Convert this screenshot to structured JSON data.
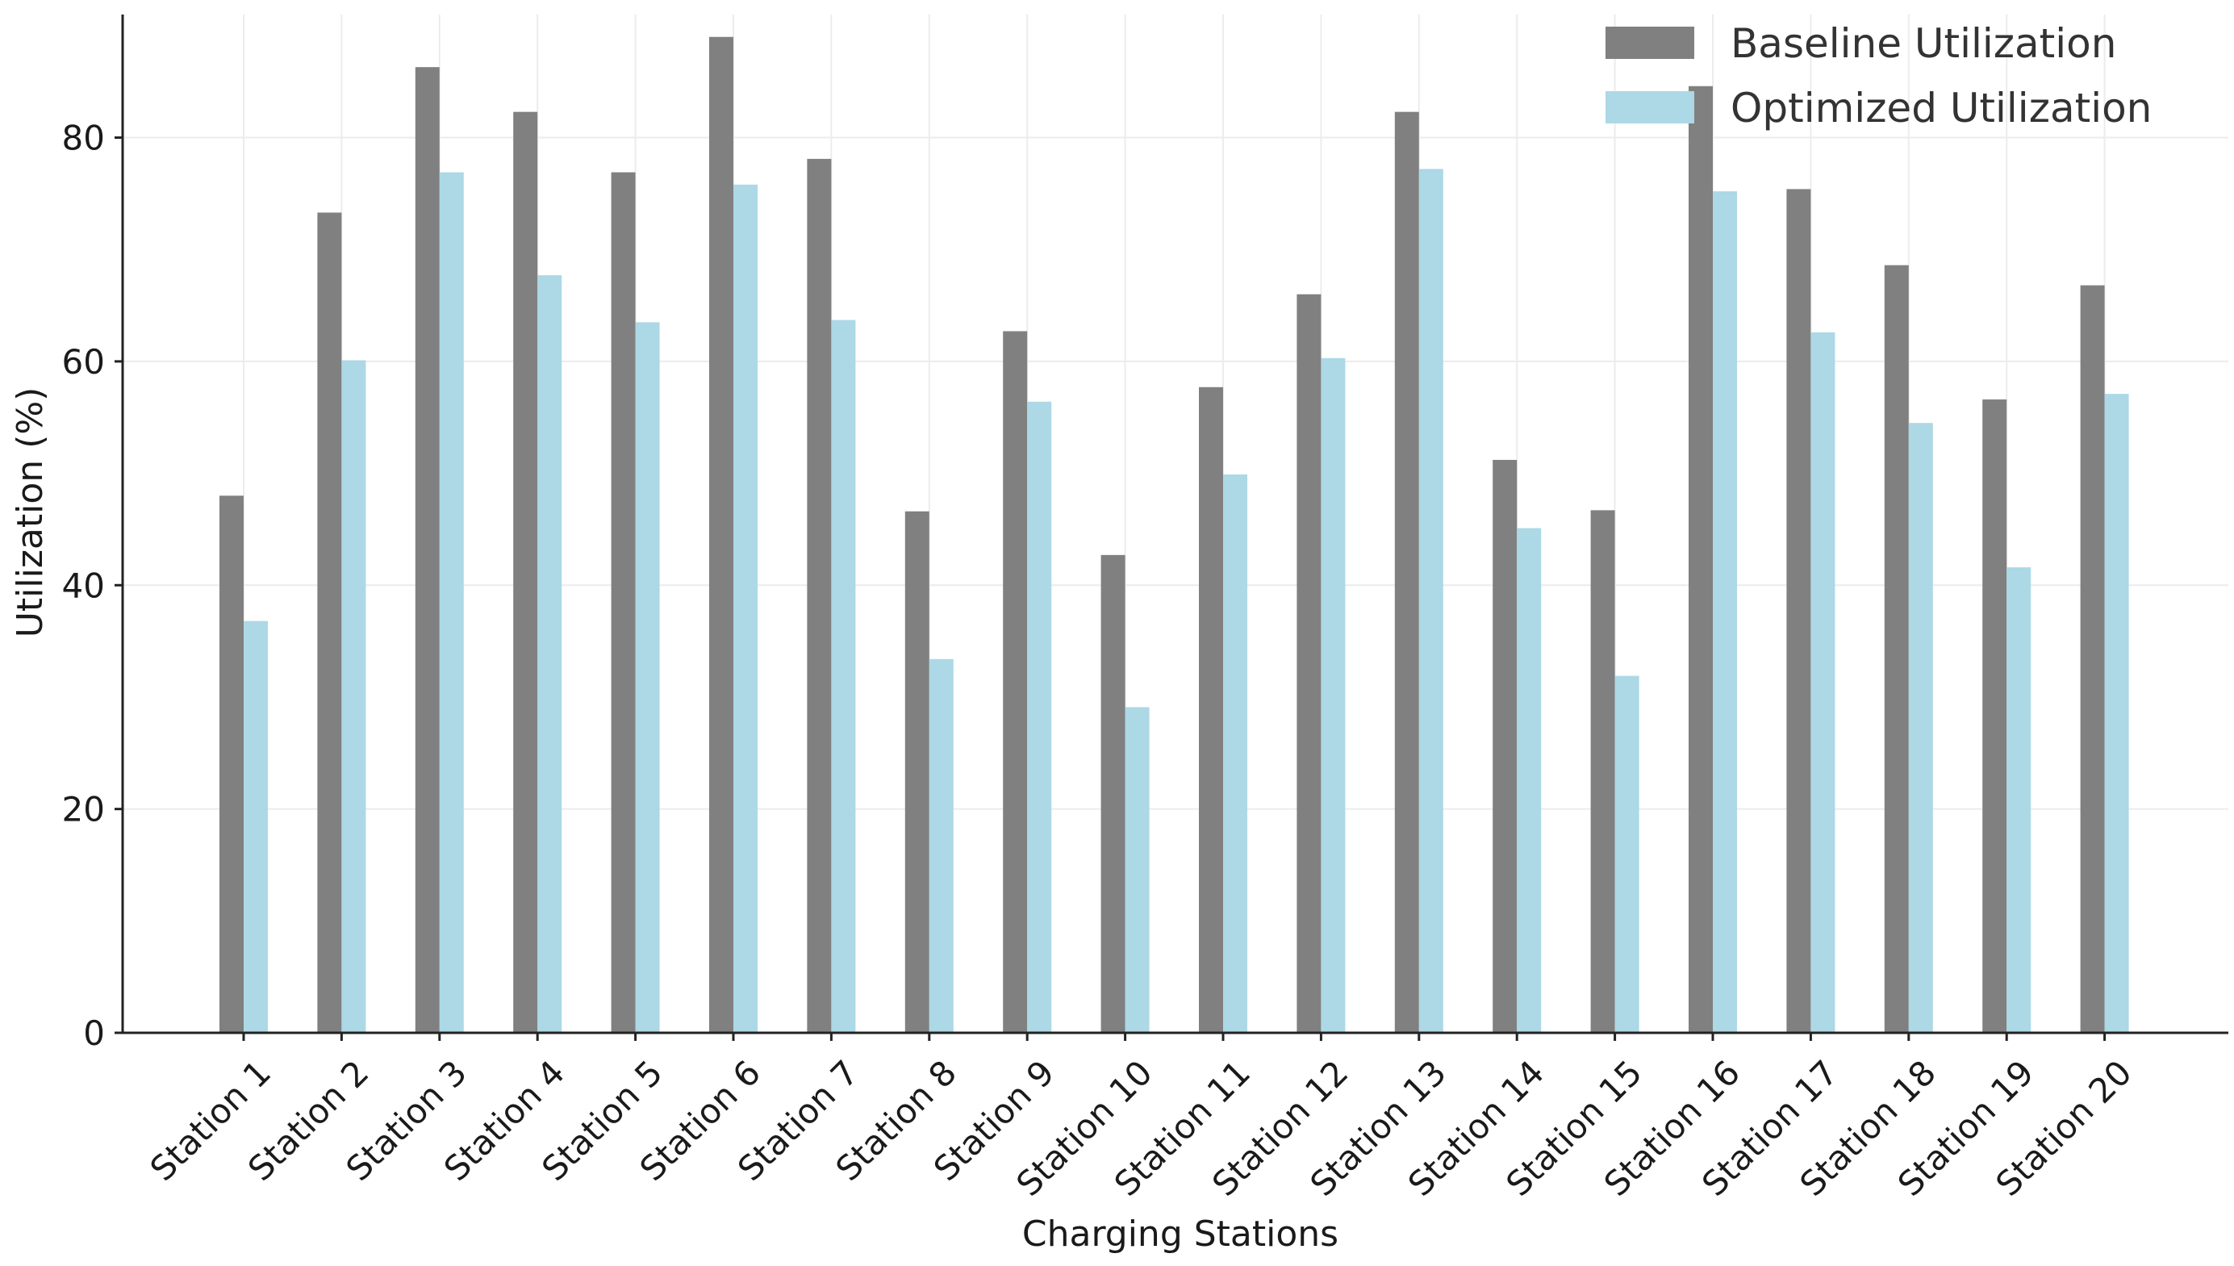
{
  "chart_data": {
    "type": "bar",
    "title": "",
    "xlabel": "Charging Stations",
    "ylabel": "Utilization (%)",
    "ylim": [
      0,
      91
    ],
    "yticks": [
      0,
      20,
      40,
      60,
      80
    ],
    "grid": true,
    "legend_position": "top-right",
    "categories": [
      "Station 1",
      "Station 2",
      "Station 3",
      "Station 4",
      "Station 5",
      "Station 6",
      "Station 7",
      "Station 8",
      "Station 9",
      "Station 10",
      "Station 11",
      "Station 12",
      "Station 13",
      "Station 14",
      "Station 15",
      "Station 16",
      "Station 17",
      "Station 18",
      "Station 19",
      "Station 20"
    ],
    "series": [
      {
        "name": "Baseline Utilization",
        "color": "#808080",
        "values": [
          48.0,
          73.3,
          86.3,
          82.3,
          76.9,
          89.0,
          78.1,
          46.6,
          62.7,
          42.7,
          57.7,
          66.0,
          82.3,
          51.2,
          46.7,
          84.6,
          75.4,
          68.6,
          56.6,
          66.8
        ]
      },
      {
        "name": "Optimized Utilization",
        "color": "#add8e6",
        "values": [
          36.8,
          60.1,
          76.9,
          67.7,
          63.5,
          75.8,
          63.7,
          33.4,
          56.4,
          29.1,
          49.9,
          60.3,
          77.2,
          45.1,
          31.9,
          75.2,
          62.6,
          54.5,
          41.6,
          57.1
        ]
      }
    ]
  }
}
